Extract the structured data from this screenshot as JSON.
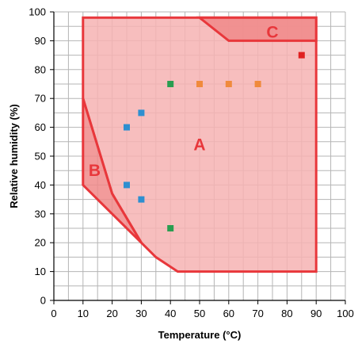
{
  "chart_data": {
    "type": "scatter",
    "xlabel": "Temperature (°C)",
    "ylabel": "Relative humidity (%)",
    "xlim": [
      0,
      100
    ],
    "ylim": [
      0,
      100
    ],
    "xticks": [
      0,
      10,
      20,
      30,
      40,
      50,
      60,
      70,
      80,
      90,
      100
    ],
    "yticks": [
      0,
      10,
      20,
      30,
      40,
      50,
      60,
      70,
      80,
      90,
      100
    ],
    "grid": {
      "major_step": 10,
      "minor_step": 5
    },
    "regions": [
      {
        "label": "A",
        "fill": "#f6b3b3",
        "stroke": "#e8373b",
        "polygon": [
          [
            10,
            98
          ],
          [
            90,
            98
          ],
          [
            90,
            10
          ],
          [
            42.5,
            10
          ],
          [
            35,
            15
          ],
          [
            30,
            20
          ],
          [
            20,
            37
          ],
          [
            10,
            70
          ]
        ],
        "label_pos": [
          50,
          54
        ]
      },
      {
        "label": "B",
        "fill": "#f08a8a",
        "stroke": "#e8373b",
        "polygon": [
          [
            10,
            70
          ],
          [
            20,
            37
          ],
          [
            30,
            20
          ],
          [
            20,
            30
          ],
          [
            10,
            40
          ]
        ],
        "label_pos": [
          14,
          45
        ]
      },
      {
        "label": "C",
        "fill": "#f08a8a",
        "stroke": "#e8373b",
        "polygon": [
          [
            50,
            98
          ],
          [
            90,
            98
          ],
          [
            90,
            90
          ],
          [
            60,
            90
          ]
        ],
        "label_pos": [
          75,
          93
        ]
      }
    ],
    "region_label_color": "#e8373b",
    "series": [
      {
        "color": "#2e8fd0",
        "points": [
          [
            25,
            60
          ],
          [
            30,
            65
          ],
          [
            25,
            40
          ],
          [
            30,
            35
          ]
        ]
      },
      {
        "color": "#2a9d50",
        "points": [
          [
            40,
            75
          ],
          [
            40,
            25
          ]
        ]
      },
      {
        "color": "#f08a3c",
        "points": [
          [
            50,
            75
          ],
          [
            60,
            75
          ],
          [
            70,
            75
          ]
        ]
      },
      {
        "color": "#e02020",
        "points": [
          [
            85,
            85
          ]
        ]
      }
    ],
    "colors": {
      "grid": "#b5b5b5",
      "axis": "#000000"
    }
  }
}
